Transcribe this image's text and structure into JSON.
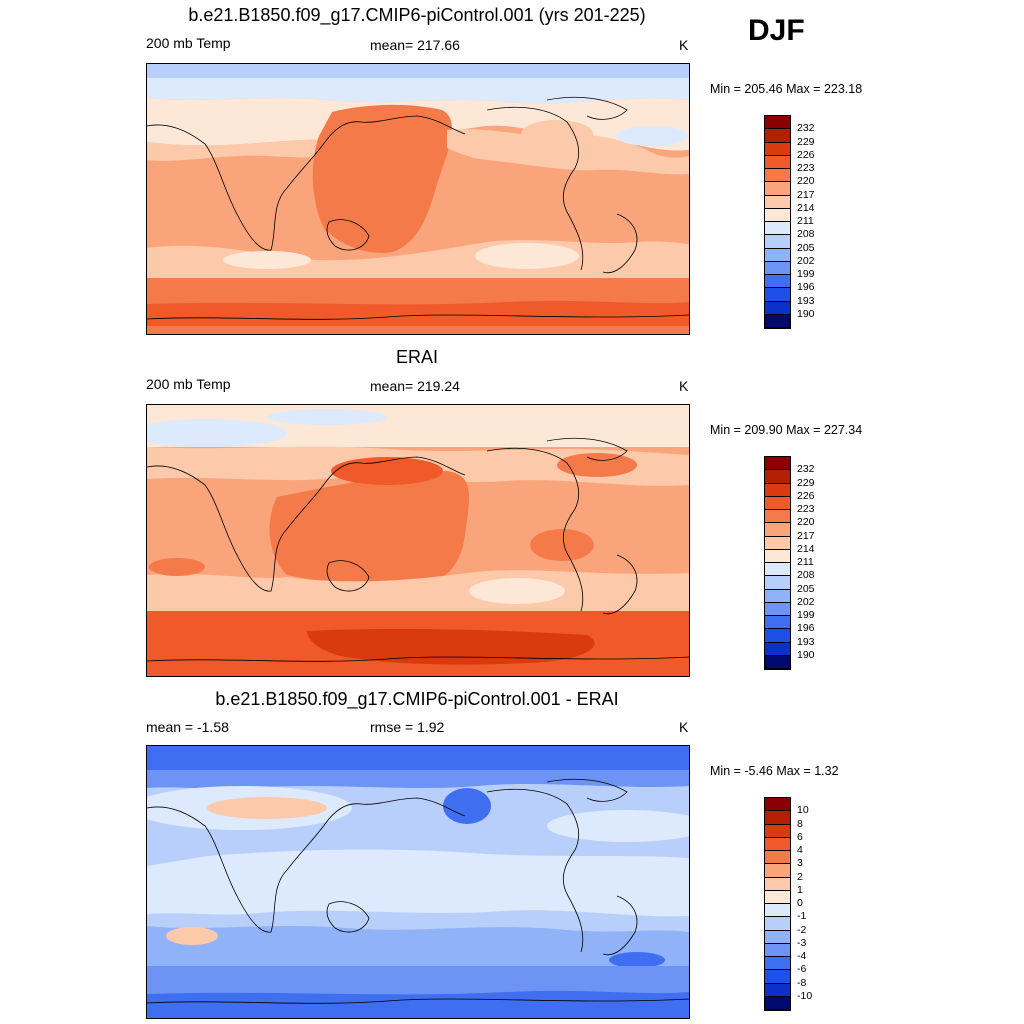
{
  "season": "DJF",
  "colors": {
    "warm": [
      "#fde8d8",
      "#fcc9aa",
      "#f9a47a",
      "#f47a4a",
      "#f05a2a",
      "#d93a10",
      "#b32000",
      "#8a0000"
    ],
    "cool": [
      "#dde9fc",
      "#b9cffb",
      "#8fb2f8",
      "#6d93f4",
      "#3f6ff0",
      "#1f50e6",
      "#0b31c8",
      "#061896",
      "#000a6e"
    ],
    "coast": "#000000"
  },
  "panels": [
    {
      "title": "b.e21.B1850.f09_g17.CMIP6-piControl.001 (yrs 201-225)",
      "left_label": "200 mb Temp",
      "center_label": "mean= 217.66",
      "units": "K",
      "minmax": "Min = 205.46 Max = 223.18",
      "colorbar_ticks": [
        "232",
        "229",
        "226",
        "223",
        "220",
        "217",
        "214",
        "211",
        "208",
        "205",
        "202",
        "199",
        "196",
        "193",
        "190"
      ],
      "colorbar_colors": [
        "#8a0000",
        "#b32000",
        "#d93a10",
        "#f05a2a",
        "#f47a4a",
        "#f9a47a",
        "#fcc9aa",
        "#fde8d8",
        "#dde9fc",
        "#b9cffb",
        "#8fb2f8",
        "#6d93f4",
        "#3f6ff0",
        "#1f50e6",
        "#0b31c8",
        "#000a6e"
      ]
    },
    {
      "title": "ERAI",
      "left_label": "200 mb Temp",
      "center_label": "mean= 219.24",
      "units": "K",
      "minmax": "Min = 209.90 Max = 227.34",
      "colorbar_ticks": [
        "232",
        "229",
        "226",
        "223",
        "220",
        "217",
        "214",
        "211",
        "208",
        "205",
        "202",
        "199",
        "196",
        "193",
        "190"
      ],
      "colorbar_colors": [
        "#8a0000",
        "#b32000",
        "#d93a10",
        "#f05a2a",
        "#f47a4a",
        "#f9a47a",
        "#fcc9aa",
        "#fde8d8",
        "#dde9fc",
        "#b9cffb",
        "#8fb2f8",
        "#6d93f4",
        "#3f6ff0",
        "#1f50e6",
        "#0b31c8",
        "#000a6e"
      ]
    },
    {
      "title": "b.e21.B1850.f09_g17.CMIP6-piControl.001 - ERAI",
      "left_label": "mean =  -1.58",
      "center_label": "rmse =   1.92",
      "units": "K",
      "minmax": "Min =  -5.46 Max =   1.32",
      "colorbar_ticks": [
        "10",
        "8",
        "6",
        "4",
        "3",
        "2",
        "1",
        "0",
        "-1",
        "-2",
        "-3",
        "-4",
        "-6",
        "-8",
        "-10"
      ],
      "colorbar_colors": [
        "#8a0000",
        "#b32000",
        "#d93a10",
        "#f05a2a",
        "#f47a4a",
        "#f9a47a",
        "#fcc9aa",
        "#fde8d8",
        "#dde9fc",
        "#b9cffb",
        "#8fb2f8",
        "#6d93f4",
        "#3f6ff0",
        "#1f50e6",
        "#0b31c8",
        "#000a6e"
      ]
    }
  ],
  "chart_data": [
    {
      "type": "heatmap",
      "title": "b.e21.B1850.f09_g17.CMIP6-piControl.001 (yrs 201-225)",
      "variable": "200 mb Temp",
      "units": "K",
      "mean": 217.66,
      "min": 205.46,
      "max": 223.18,
      "contour_levels": [
        190,
        193,
        196,
        199,
        202,
        205,
        208,
        211,
        214,
        217,
        220,
        223,
        226,
        229,
        232
      ]
    },
    {
      "type": "heatmap",
      "title": "ERAI",
      "variable": "200 mb Temp",
      "units": "K",
      "mean": 219.24,
      "min": 209.9,
      "max": 227.34,
      "contour_levels": [
        190,
        193,
        196,
        199,
        202,
        205,
        208,
        211,
        214,
        217,
        220,
        223,
        226,
        229,
        232
      ]
    },
    {
      "type": "heatmap",
      "title": "b.e21.B1850.f09_g17.CMIP6-piControl.001 - ERAI",
      "units": "K",
      "mean": -1.58,
      "rmse": 1.92,
      "min": -5.46,
      "max": 1.32,
      "contour_levels": [
        -10,
        -8,
        -6,
        -4,
        -3,
        -2,
        -1,
        0,
        1,
        2,
        3,
        4,
        6,
        8,
        10
      ]
    }
  ]
}
